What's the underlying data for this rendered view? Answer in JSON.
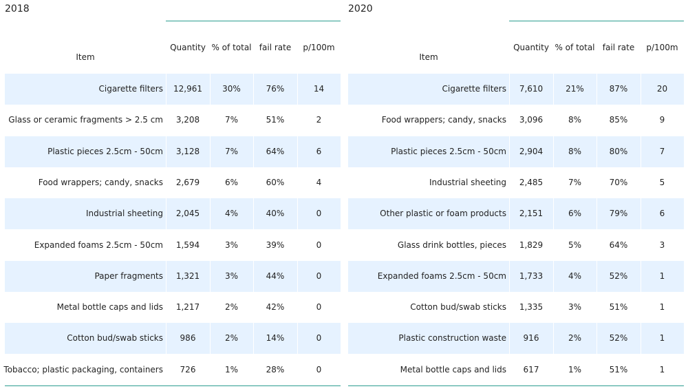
{
  "chart_data": [
    {
      "type": "table",
      "title": "2018",
      "columns": [
        "Item",
        "Quantity",
        "% of total",
        "fail rate",
        "p/100m"
      ],
      "rows": [
        [
          "Cigarette filters",
          "12,961",
          "30%",
          "76%",
          "14"
        ],
        [
          "Glass or ceramic fragments > 2.5 cm",
          "3,208",
          "7%",
          "51%",
          "2"
        ],
        [
          "Plastic pieces 2.5cm - 50cm",
          "3,128",
          "7%",
          "64%",
          "6"
        ],
        [
          "Food wrappers; candy, snacks",
          "2,679",
          "6%",
          "60%",
          "4"
        ],
        [
          "Industrial sheeting",
          "2,045",
          "4%",
          "40%",
          "0"
        ],
        [
          "Expanded foams 2.5cm - 50cm",
          "1,594",
          "3%",
          "39%",
          "0"
        ],
        [
          "Paper fragments",
          "1,321",
          "3%",
          "44%",
          "0"
        ],
        [
          "Metal bottle caps and lids",
          "1,217",
          "2%",
          "42%",
          "0"
        ],
        [
          "Cotton bud/swab sticks",
          "986",
          "2%",
          "14%",
          "0"
        ],
        [
          "Tobacco; plastic packaging, containers",
          "726",
          "1%",
          "28%",
          "0"
        ]
      ]
    },
    {
      "type": "table",
      "title": "2020",
      "columns": [
        "Item",
        "Quantity",
        "% of total",
        "fail rate",
        "p/100m"
      ],
      "rows": [
        [
          "Cigarette filters",
          "7,610",
          "21%",
          "87%",
          "20"
        ],
        [
          "Food wrappers; candy, snacks",
          "3,096",
          "8%",
          "85%",
          "9"
        ],
        [
          "Plastic pieces 2.5cm - 50cm",
          "2,904",
          "8%",
          "80%",
          "7"
        ],
        [
          "Industrial sheeting",
          "2,485",
          "7%",
          "70%",
          "5"
        ],
        [
          "Other plastic or foam products",
          "2,151",
          "6%",
          "79%",
          "6"
        ],
        [
          "Glass drink bottles, pieces",
          "1,829",
          "5%",
          "64%",
          "3"
        ],
        [
          "Expanded foams 2.5cm - 50cm",
          "1,733",
          "4%",
          "52%",
          "1"
        ],
        [
          "Cotton bud/swab sticks",
          "1,335",
          "3%",
          "51%",
          "1"
        ],
        [
          "Plastic construction waste",
          "916",
          "2%",
          "52%",
          "1"
        ],
        [
          "Metal bottle caps and lids",
          "617",
          "1%",
          "51%",
          "1"
        ]
      ]
    }
  ]
}
